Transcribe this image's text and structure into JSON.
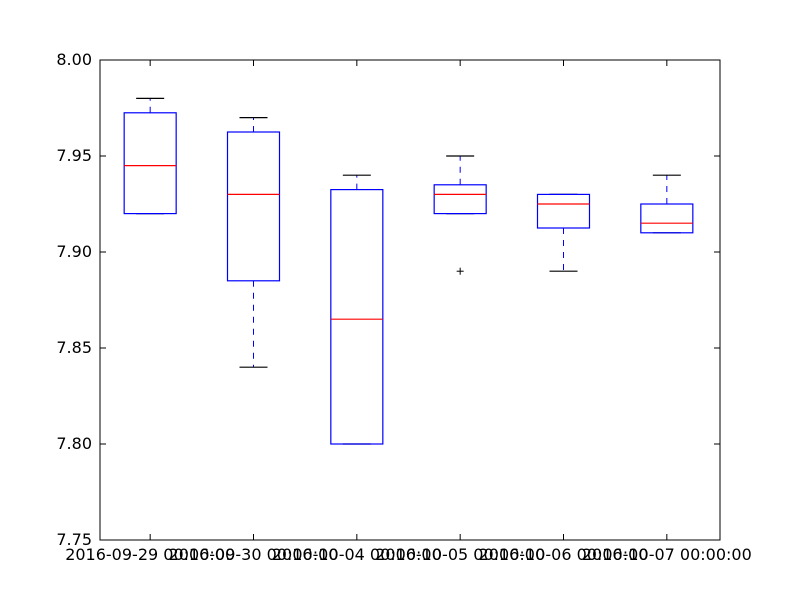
{
  "chart_data": {
    "type": "box",
    "title": "",
    "xlabel": "",
    "ylabel": "",
    "ylim": [
      7.75,
      8.0
    ],
    "yticks": [
      7.75,
      7.8,
      7.85,
      7.9,
      7.95,
      8.0
    ],
    "ytick_labels": [
      "7.75",
      "7.80",
      "7.85",
      "7.90",
      "7.95",
      "8.00"
    ],
    "categories": [
      "2016-09-29 00:00:00",
      "2016-09-30 00:00:00",
      "2016-10-04 00:00:00",
      "2016-10-05 00:00:00",
      "2016-10-06 00:00:00",
      "2016-10-07 00:00:00"
    ],
    "boxes": [
      {
        "whisker_low": 7.92,
        "q1": 7.92,
        "median": 7.945,
        "q3": 7.9725,
        "whisker_high": 7.98,
        "outliers": []
      },
      {
        "whisker_low": 7.84,
        "q1": 7.885,
        "median": 7.93,
        "q3": 7.9625,
        "whisker_high": 7.97,
        "outliers": []
      },
      {
        "whisker_low": 7.8,
        "q1": 7.8,
        "median": 7.865,
        "q3": 7.9325,
        "whisker_high": 7.94,
        "outliers": []
      },
      {
        "whisker_low": 7.92,
        "q1": 7.92,
        "median": 7.93,
        "q3": 7.935,
        "whisker_high": 7.95,
        "outliers": [
          7.89
        ]
      },
      {
        "whisker_low": 7.89,
        "q1": 7.9125,
        "median": 7.925,
        "q3": 7.93,
        "whisker_high": 7.93,
        "outliers": []
      },
      {
        "whisker_low": 7.91,
        "q1": 7.91,
        "median": 7.915,
        "q3": 7.925,
        "whisker_high": 7.94,
        "outliers": []
      }
    ],
    "grid": false,
    "colors": {
      "box": "#0000ff",
      "median": "#ff0000",
      "caps": "#000000",
      "outlier": "#000000"
    }
  }
}
